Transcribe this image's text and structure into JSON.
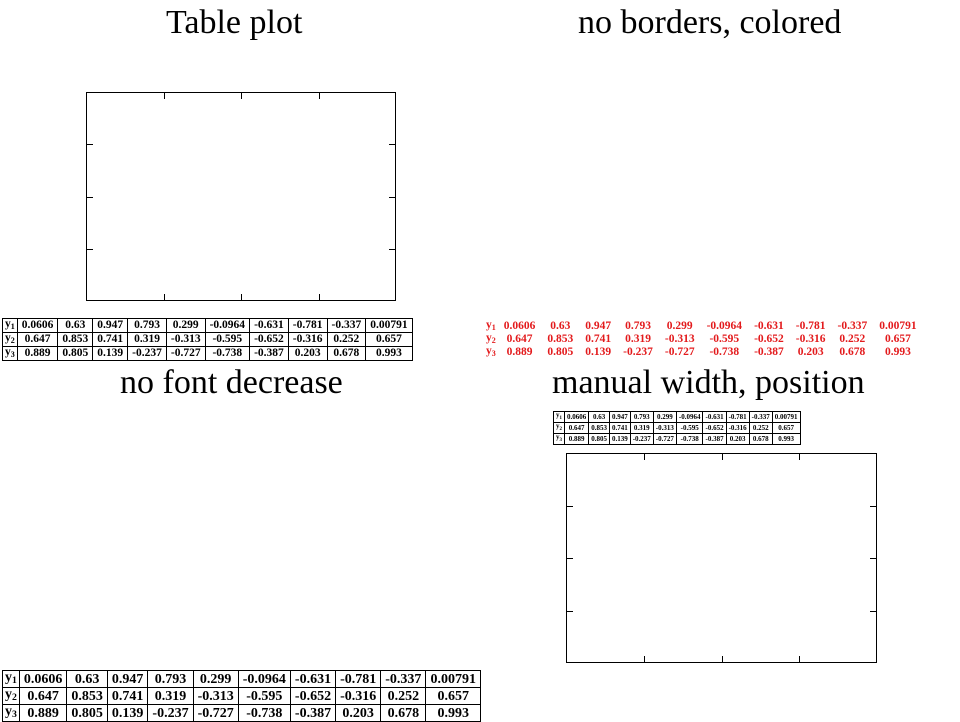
{
  "panels": {
    "p1": {
      "title": "Table plot"
    },
    "p2": {
      "title": "no borders, colored"
    },
    "p3": {
      "title": "no font decrease"
    },
    "p4": {
      "title": "manual width, position"
    }
  },
  "colors": {
    "table_text": "#000000",
    "colored_table_text": "#e31a1c"
  },
  "chart_data": {
    "type": "table",
    "rows": [
      {
        "label": "y",
        "sub": "1",
        "values": [
          "0.0606",
          "0.63",
          "0.947",
          "0.793",
          "0.299",
          "-0.0964",
          "-0.631",
          "-0.781",
          "-0.337",
          "0.00791"
        ]
      },
      {
        "label": "y",
        "sub": "2",
        "values": [
          "0.647",
          "0.853",
          "0.741",
          "0.319",
          "-0.313",
          "-0.595",
          "-0.652",
          "-0.316",
          "0.252",
          "0.657"
        ]
      },
      {
        "label": "y",
        "sub": "3",
        "values": [
          "0.889",
          "0.805",
          "0.139",
          "-0.237",
          "-0.727",
          "-0.738",
          "-0.387",
          "0.203",
          "0.678",
          "0.993"
        ]
      }
    ]
  }
}
